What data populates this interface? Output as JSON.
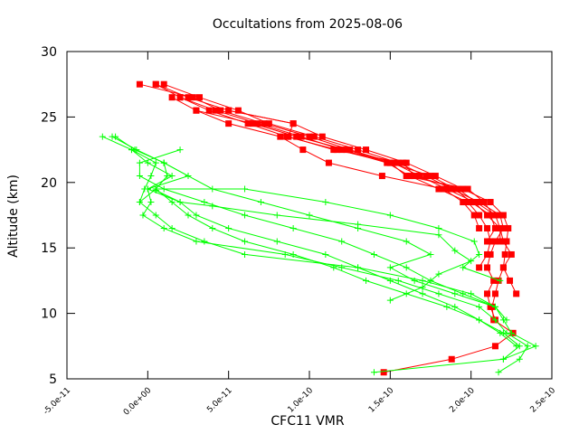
{
  "chart_data": {
    "type": "line",
    "title": "Occultations from 2025-08-06",
    "xlabel": "CFC11 VMR",
    "ylabel": "Altitude (km)",
    "xlim": [
      -5e-11,
      2.5e-10
    ],
    "ylim": [
      5,
      30
    ],
    "x_ticks": [
      -5e-11,
      0,
      5e-11,
      1e-10,
      1.5e-10,
      2e-10,
      2.5e-10
    ],
    "x_tick_labels": [
      "-5.0e-11",
      "0.0e+00",
      "5.0e-11",
      "1.0e-10",
      "1.5e-10",
      "2.0e-10",
      "2.5e-10"
    ],
    "y_ticks": [
      5,
      10,
      15,
      20,
      25,
      30
    ],
    "y_tick_labels": [
      "5",
      "10",
      "15",
      "20",
      "25",
      "30"
    ],
    "grid": false,
    "legend": "none",
    "colors": {
      "red_series": "#ff0000",
      "green_series": "#00ff00"
    },
    "series": [
      {
        "color": "red",
        "marker": "square",
        "points": [
          [
            1.46e-10,
            5.5
          ],
          [
            1.88e-10,
            6.5
          ],
          [
            2.15e-10,
            7.5
          ],
          [
            2.26e-10,
            8.5
          ],
          [
            2.14e-10,
            9.5
          ],
          [
            2.13e-10,
            10.5
          ],
          [
            2.15e-10,
            11.5
          ],
          [
            2.17e-10,
            12.5
          ],
          [
            2.2e-10,
            13.5
          ],
          [
            2.21e-10,
            14.5
          ],
          [
            2.22e-10,
            15.5
          ],
          [
            2.23e-10,
            16.5
          ],
          [
            2.2e-10,
            17.5
          ],
          [
            2.12e-10,
            18.5
          ],
          [
            1.95e-10,
            19.5
          ],
          [
            1.78e-10,
            20.5
          ],
          [
            1.6e-10,
            21.5
          ],
          [
            1.35e-10,
            22.5
          ],
          [
            1.08e-10,
            23.5
          ],
          [
            9e-11,
            24.5
          ],
          [
            5e-11,
            25.5
          ],
          [
            2.5e-11,
            26.5
          ],
          [
            5e-12,
            27.5
          ]
        ]
      },
      {
        "color": "red",
        "marker": "square",
        "points": [
          [
            2.15e-10,
            9.5
          ],
          [
            2.12e-10,
            10.5
          ],
          [
            2.1e-10,
            11.5
          ],
          [
            2.14e-10,
            12.5
          ],
          [
            2.1e-10,
            13.5
          ],
          [
            2.12e-10,
            14.5
          ],
          [
            2.15e-10,
            15.5
          ],
          [
            2.2e-10,
            16.5
          ],
          [
            2.18e-10,
            17.5
          ],
          [
            2.05e-10,
            18.5
          ],
          [
            1.88e-10,
            19.5
          ],
          [
            1.72e-10,
            20.5
          ],
          [
            1.55e-10,
            21.5
          ],
          [
            1.3e-10,
            22.5
          ],
          [
            1.03e-10,
            23.5
          ],
          [
            7.5e-11,
            24.5
          ],
          [
            5.6e-11,
            25.5
          ],
          [
            3.2e-11,
            26.5
          ],
          [
            1e-11,
            27.5
          ]
        ]
      },
      {
        "color": "red",
        "marker": "square",
        "points": [
          [
            2.28e-10,
            11.5
          ],
          [
            2.24e-10,
            12.5
          ],
          [
            2.2e-10,
            13.5
          ],
          [
            2.25e-10,
            14.5
          ],
          [
            2.2e-10,
            15.5
          ],
          [
            2.18e-10,
            16.5
          ],
          [
            2.1e-10,
            17.5
          ],
          [
            2.02e-10,
            18.5
          ],
          [
            1.85e-10,
            19.5
          ],
          [
            1.68e-10,
            20.5
          ],
          [
            1.52e-10,
            21.5
          ],
          [
            1.25e-10,
            22.5
          ],
          [
            1e-10,
            23.5
          ],
          [
            7.2e-11,
            24.5
          ],
          [
            4.5e-11,
            25.5
          ],
          [
            2.8e-11,
            26.5
          ],
          [
            -5e-12,
            27.5
          ]
        ]
      },
      {
        "color": "red",
        "marker": "square",
        "points": [
          [
            2.05e-10,
            13.5
          ],
          [
            2.1e-10,
            14.5
          ],
          [
            2.12e-10,
            15.5
          ],
          [
            2.1e-10,
            16.5
          ],
          [
            2.05e-10,
            17.5
          ],
          [
            1.98e-10,
            18.5
          ],
          [
            1.8e-10,
            19.5
          ],
          [
            1.62e-10,
            20.5
          ],
          [
            1.48e-10,
            21.5
          ],
          [
            1.2e-10,
            22.5
          ],
          [
            9.5e-11,
            23.5
          ],
          [
            6.8e-11,
            24.5
          ],
          [
            4.2e-11,
            25.5
          ],
          [
            2e-11,
            26.5
          ],
          [
            5e-12,
            27.5
          ]
        ]
      },
      {
        "color": "red",
        "marker": "square",
        "points": [
          [
            2.1e-10,
            15.5
          ],
          [
            2.15e-10,
            16.5
          ],
          [
            2.12e-10,
            17.5
          ],
          [
            2e-10,
            18.5
          ],
          [
            1.9e-10,
            19.5
          ],
          [
            1.75e-10,
            20.5
          ],
          [
            1.5e-10,
            21.5
          ],
          [
            1.23e-10,
            22.5
          ],
          [
            9.2e-11,
            23.5
          ],
          [
            6.5e-11,
            24.5
          ],
          [
            3e-11,
            25.5
          ],
          [
            1.5e-11,
            26.5
          ]
        ]
      },
      {
        "color": "red",
        "marker": "square",
        "points": [
          [
            2.14e-10,
            17.5
          ],
          [
            2.08e-10,
            18.5
          ],
          [
            1.98e-10,
            19.5
          ],
          [
            1.6e-10,
            20.5
          ],
          [
            1.5e-10,
            21.5
          ],
          [
            1.17e-10,
            22.5
          ],
          [
            8.6e-11,
            23.5
          ],
          [
            6.2e-11,
            24.5
          ],
          [
            3.8e-11,
            25.5
          ],
          [
            2e-11,
            26.5
          ]
        ]
      },
      {
        "color": "red",
        "marker": "square",
        "points": [
          [
            2.18e-10,
            15.5
          ],
          [
            2.18e-10,
            16.5
          ],
          [
            2.15e-10,
            17.5
          ],
          [
            2.03e-10,
            18.5
          ],
          [
            1.92e-10,
            19.5
          ],
          [
            1.65e-10,
            20.5
          ],
          [
            1.58e-10,
            21.5
          ],
          [
            1.15e-10,
            22.5
          ],
          [
            8.7e-11,
            23.5
          ],
          [
            9e-11,
            24.5
          ],
          [
            5e-11,
            25.5
          ]
        ]
      },
      {
        "color": "red",
        "marker": "square",
        "points": [
          [
            2.05e-10,
            16.5
          ],
          [
            2.02e-10,
            17.5
          ],
          [
            1.95e-10,
            18.5
          ],
          [
            1.83e-10,
            19.5
          ],
          [
            1.45e-10,
            20.5
          ],
          [
            1.12e-10,
            21.5
          ],
          [
            9.6e-11,
            22.5
          ],
          [
            8.2e-11,
            23.5
          ],
          [
            5e-11,
            24.5
          ],
          [
            3e-11,
            25.5
          ]
        ]
      },
      {
        "color": "green",
        "marker": "plus",
        "points": [
          [
            1.4e-10,
            5.5
          ],
          [
            2.2e-10,
            6.5
          ],
          [
            2.4e-10,
            7.5
          ],
          [
            2.25e-10,
            8.5
          ],
          [
            2.2e-10,
            9.5
          ],
          [
            2.15e-10,
            10.5
          ],
          [
            2e-10,
            11.5
          ],
          [
            1.7e-10,
            12.5
          ],
          [
            1.3e-10,
            13.5
          ],
          [
            6e-11,
            14.5
          ],
          [
            3.5e-11,
            15.5
          ],
          [
            1.5e-11,
            16.5
          ],
          [
            5e-12,
            17.5
          ],
          [
            -5e-12,
            18.5
          ],
          [
            -2e-12,
            19.5
          ],
          [
            2e-12,
            20.5
          ],
          [
            5e-12,
            21.5
          ],
          [
            -1e-11,
            22.5
          ],
          [
            -2.8e-11,
            23.5
          ]
        ]
      },
      {
        "color": "green",
        "marker": "plus",
        "points": [
          [
            2.17e-10,
            5.5
          ],
          [
            2.3e-10,
            6.5
          ],
          [
            2.35e-10,
            7.5
          ],
          [
            2.22e-10,
            8.5
          ],
          [
            2.15e-10,
            9.5
          ],
          [
            2.05e-10,
            10.5
          ],
          [
            1.8e-10,
            11.5
          ],
          [
            1.55e-10,
            12.5
          ],
          [
            1.2e-10,
            13.5
          ],
          [
            8.5e-11,
            14.5
          ],
          [
            3e-11,
            15.5
          ],
          [
            1e-11,
            16.5
          ],
          [
            -3e-12,
            17.5
          ],
          [
            2e-12,
            18.5
          ],
          [
            0.0,
            19.5
          ],
          [
            2.5e-11,
            20.5
          ],
          [
            1e-11,
            21.5
          ],
          [
            -7e-12,
            22.5
          ],
          [
            -2.2e-11,
            23.5
          ]
        ]
      },
      {
        "color": "green",
        "marker": "plus",
        "points": [
          [
            2.2e-10,
            6.5
          ],
          [
            2.3e-10,
            7.5
          ],
          [
            2.2e-10,
            8.5
          ],
          [
            2.05e-10,
            9.5
          ],
          [
            1.85e-10,
            10.5
          ],
          [
            1.6e-10,
            11.5
          ],
          [
            1.35e-10,
            12.5
          ],
          [
            1.15e-10,
            13.5
          ],
          [
            9e-11,
            14.5
          ],
          [
            6e-11,
            15.5
          ],
          [
            4e-11,
            16.5
          ],
          [
            2.5e-11,
            17.5
          ],
          [
            1.5e-11,
            18.5
          ],
          [
            5e-12,
            19.5
          ],
          [
            1.2e-11,
            20.5
          ],
          [
            1e-11,
            21.5
          ],
          [
            -8e-12,
            22.5
          ],
          [
            -2e-11,
            23.5
          ]
        ]
      },
      {
        "color": "green",
        "marker": "plus",
        "points": [
          [
            2.28e-10,
            7.5
          ],
          [
            2.18e-10,
            8.5
          ],
          [
            2.05e-10,
            9.5
          ],
          [
            1.9e-10,
            10.5
          ],
          [
            1.7e-10,
            11.5
          ],
          [
            1.5e-10,
            12.5
          ],
          [
            1.3e-10,
            13.5
          ],
          [
            1.1e-10,
            14.5
          ],
          [
            8e-11,
            15.5
          ],
          [
            5e-11,
            16.5
          ],
          [
            3e-11,
            17.5
          ],
          [
            2e-11,
            18.5
          ],
          [
            0.0,
            19.5
          ],
          [
            1.5e-11,
            20.5
          ],
          [
            0.0,
            21.5
          ],
          [
            -1e-11,
            22.5
          ]
        ]
      },
      {
        "color": "green",
        "marker": "plus",
        "points": [
          [
            2.22e-10,
            9.5
          ],
          [
            2.15e-10,
            10.5
          ],
          [
            1.95e-10,
            11.5
          ],
          [
            1.75e-10,
            12.5
          ],
          [
            1.6e-10,
            13.5
          ],
          [
            1.4e-10,
            14.5
          ],
          [
            1.2e-10,
            15.5
          ],
          [
            9e-11,
            16.5
          ],
          [
            6e-11,
            17.5
          ],
          [
            3.5e-11,
            18.5
          ],
          [
            1e-11,
            19.5
          ],
          [
            -5e-12,
            20.5
          ],
          [
            -5e-12,
            21.5
          ],
          [
            2e-11,
            22.5
          ]
        ]
      },
      {
        "color": "green",
        "marker": "plus",
        "points": [
          [
            2.15e-10,
            10.5
          ],
          [
            1.9e-10,
            11.5
          ],
          [
            1.65e-10,
            12.5
          ],
          [
            1.5e-10,
            13.5
          ],
          [
            1.75e-10,
            14.5
          ],
          [
            1.6e-10,
            15.5
          ],
          [
            1.3e-10,
            16.5
          ],
          [
            1e-10,
            17.5
          ],
          [
            7e-11,
            18.5
          ],
          [
            4e-11,
            19.5
          ],
          [
            2.5e-11,
            20.5
          ],
          [
            1e-11,
            21.5
          ]
        ]
      },
      {
        "color": "green",
        "marker": "plus",
        "points": [
          [
            2.18e-10,
            12.5
          ],
          [
            1.95e-10,
            13.5
          ],
          [
            2.05e-10,
            14.5
          ],
          [
            2.02e-10,
            15.5
          ],
          [
            1.8e-10,
            16.5
          ],
          [
            1.5e-10,
            17.5
          ],
          [
            1.1e-10,
            18.5
          ],
          [
            6e-11,
            19.5
          ],
          [
            5e-12,
            19.5
          ],
          [
            -5e-12,
            18.5
          ]
        ]
      },
      {
        "color": "green",
        "marker": "plus",
        "points": [
          [
            1.5e-10,
            11.0
          ],
          [
            1.7e-10,
            12.0
          ],
          [
            1.8e-10,
            13.0
          ],
          [
            2e-10,
            14.0
          ],
          [
            1.9e-10,
            14.8
          ],
          [
            1.8e-10,
            16.0
          ],
          [
            1.3e-10,
            16.8
          ],
          [
            8e-11,
            17.5
          ],
          [
            4e-11,
            18.2
          ],
          [
            2e-11,
            18.5
          ],
          [
            5e-12,
            19.4
          ]
        ]
      }
    ]
  }
}
